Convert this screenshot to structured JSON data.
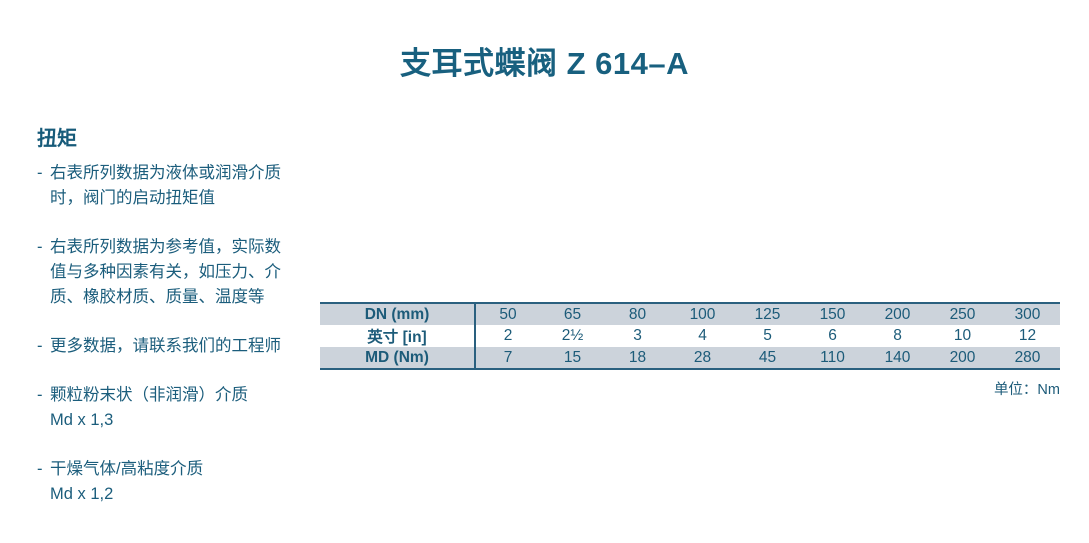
{
  "page": {
    "title": "支耳式蝶阀 Z 614–A",
    "colors": {
      "text": "#1b5d7c",
      "title": "#18607f",
      "table_border": "#2a607f",
      "table_row_stripe": "#ccd3db",
      "background": "#ffffff"
    }
  },
  "torque": {
    "heading": "扭矩",
    "bullet_marker": "-",
    "bullets": [
      {
        "lines": [
          "右表所列数据为液体或润滑介质",
          "时，阀门的启动扭矩值"
        ]
      },
      {
        "lines": [
          "右表所列数据为参考值，实际数",
          "值与多种因素有关，如压力、介",
          "质、橡胶材质、质量、温度等"
        ]
      },
      {
        "lines": [
          "更多数据，请联系我们的工程师"
        ]
      },
      {
        "lines": [
          "颗粒粉末状（非润滑）介质",
          "Md x 1,3"
        ]
      },
      {
        "lines": [
          "干燥气体/高粘度介质",
          "Md x 1,2"
        ]
      }
    ]
  },
  "table": {
    "rows": [
      {
        "header": "DN (mm)",
        "values": [
          "50",
          "65",
          "80",
          "100",
          "125",
          "150",
          "200",
          "250",
          "300"
        ]
      },
      {
        "header": "英寸 [in]",
        "values": [
          "2",
          "2½",
          "3",
          "4",
          "5",
          "6",
          "8",
          "10",
          "12"
        ]
      },
      {
        "header": "MD (Nm)",
        "values": [
          "7",
          "15",
          "18",
          "28",
          "45",
          "110",
          "140",
          "200",
          "280"
        ]
      }
    ],
    "unit_note": "单位：Nm"
  }
}
